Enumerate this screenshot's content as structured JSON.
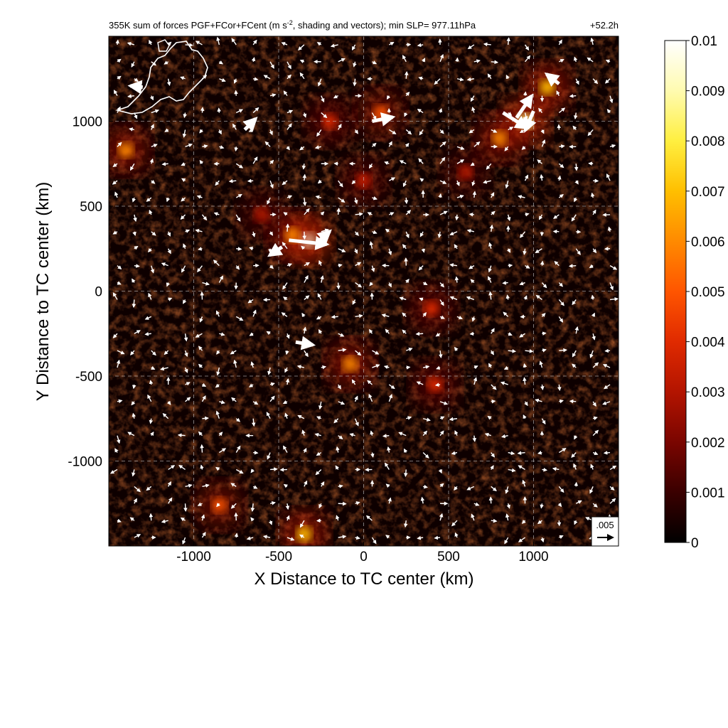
{
  "chart_data": {
    "type": "heatmap",
    "title": "355K sum of forces PGF+FCor+FCent (m s-2, shading and vectors); min SLP= 977.11hPa",
    "title_parts": {
      "main": "355K sum of forces PGF+FCor+FCent (m s",
      "superscript": "-2",
      "rest": ", shading and vectors); min SLP= 977.11hPa"
    },
    "time_label": "+52.2h",
    "xlabel": "X Distance to TC center (km)",
    "ylabel": "Y Distance to TC center (km)",
    "xlim": [
      -1500,
      1500
    ],
    "ylim": [
      -1500,
      1500
    ],
    "xticks": [
      -1000,
      -500,
      0,
      500,
      1000
    ],
    "xtick_labels": [
      "-1000",
      "-500",
      "0",
      "500",
      "1000"
    ],
    "yticks": [
      -1000,
      -500,
      0,
      500,
      1000
    ],
    "ytick_labels": [
      "-1000",
      "-500",
      "0",
      "500",
      "1000"
    ],
    "grid": true,
    "colorbar": {
      "min": 0,
      "max": 0.01,
      "ticks": [
        0,
        0.001,
        0.002,
        0.003,
        0.004,
        0.005,
        0.006,
        0.007,
        0.008,
        0.009,
        0.01
      ],
      "tick_labels": [
        "0",
        "0.001",
        "0.002",
        "0.003",
        "0.004",
        "0.005",
        "0.006",
        "0.007",
        "0.008",
        "0.009",
        "0.01"
      ],
      "colors": [
        "#000000",
        "#3a0000",
        "#7a0500",
        "#b31400",
        "#e02a00",
        "#ff5500",
        "#ff8a00",
        "#ffbf00",
        "#ffef40",
        "#fffbb0",
        "#ffffff"
      ]
    },
    "reference_vector": {
      "label": ".005",
      "magnitude": 0.005
    },
    "hotspots": [
      {
        "x": -330,
        "y": 300,
        "value": 0.0095
      },
      {
        "x": -420,
        "y": 330,
        "value": 0.006
      },
      {
        "x": 950,
        "y": 1000,
        "value": 0.0085
      },
      {
        "x": 1080,
        "y": 1200,
        "value": 0.007
      },
      {
        "x": 800,
        "y": 900,
        "value": 0.006
      },
      {
        "x": -1400,
        "y": 830,
        "value": 0.006
      },
      {
        "x": -200,
        "y": 1000,
        "value": 0.004
      },
      {
        "x": 100,
        "y": 1050,
        "value": 0.005
      },
      {
        "x": -80,
        "y": -430,
        "value": 0.006
      },
      {
        "x": 400,
        "y": -100,
        "value": 0.004
      },
      {
        "x": 420,
        "y": -550,
        "value": 0.004
      },
      {
        "x": -350,
        "y": -1430,
        "value": 0.007
      },
      {
        "x": -850,
        "y": -1260,
        "value": 0.005
      },
      {
        "x": 0,
        "y": 650,
        "value": 0.0035
      },
      {
        "x": -600,
        "y": 450,
        "value": 0.003
      },
      {
        "x": 600,
        "y": 700,
        "value": 0.003
      }
    ],
    "big_vectors": [
      {
        "x": -440,
        "y": 300,
        "u": 0.0055,
        "v": -0.0006
      },
      {
        "x": -480,
        "y": 260,
        "u": -0.0018,
        "v": -0.0012
      },
      {
        "x": -280,
        "y": 280,
        "u": 0.002,
        "v": 0.0018
      },
      {
        "x": 820,
        "y": 1050,
        "u": 0.0035,
        "v": -0.0022
      },
      {
        "x": 900,
        "y": 1020,
        "u": 0.0022,
        "v": 0.0032
      },
      {
        "x": 1000,
        "y": 1060,
        "u": -0.0012,
        "v": -0.0028
      },
      {
        "x": 1150,
        "y": 1220,
        "u": -0.0018,
        "v": 0.0014
      },
      {
        "x": 50,
        "y": 1000,
        "u": 0.003,
        "v": 0.0006
      },
      {
        "x": -400,
        "y": -300,
        "u": 0.0025,
        "v": -0.0004
      },
      {
        "x": -700,
        "y": 950,
        "u": 0.0016,
        "v": 0.0016
      },
      {
        "x": -1300,
        "y": 1200,
        "u": -0.0018,
        "v": 0.0002
      }
    ]
  }
}
